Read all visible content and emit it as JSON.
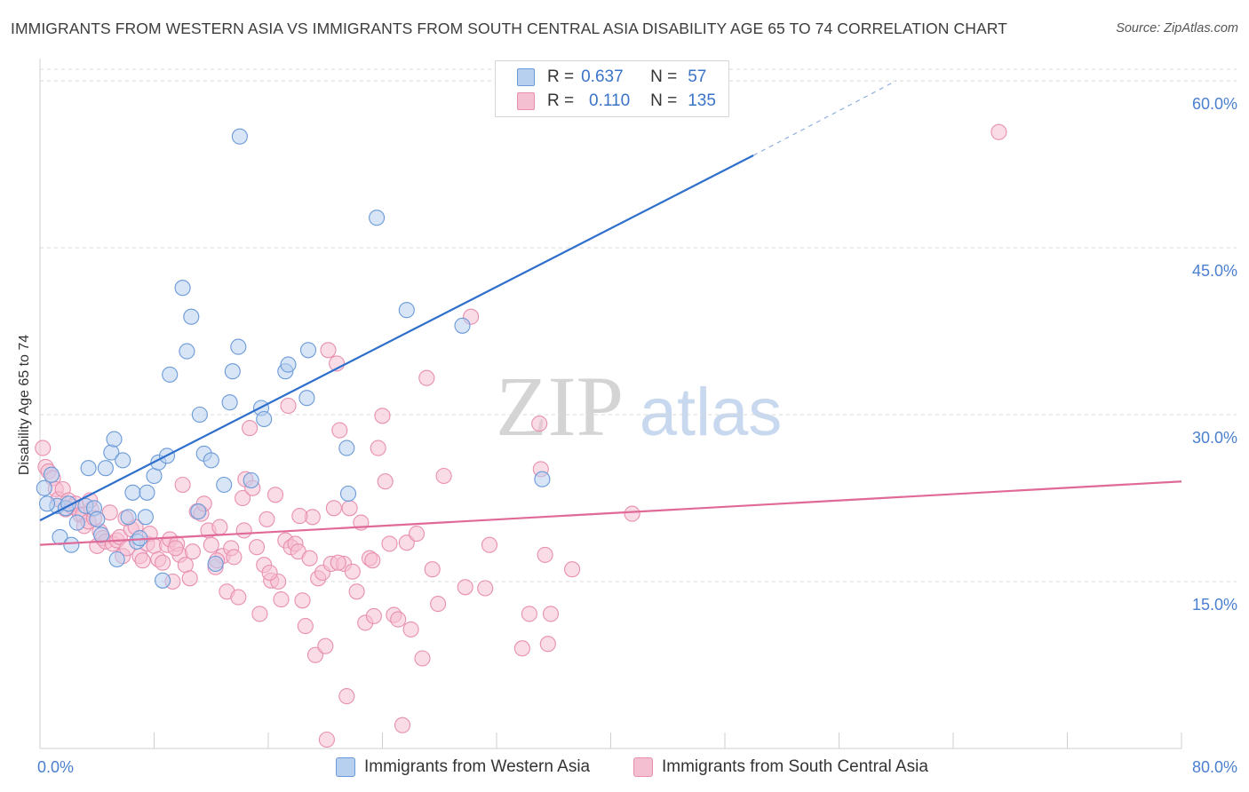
{
  "title": "IMMIGRANTS FROM WESTERN ASIA VS IMMIGRANTS FROM SOUTH CENTRAL ASIA DISABILITY AGE 65 TO 74 CORRELATION CHART",
  "source": "Source: ZipAtlas.com",
  "watermark": {
    "zip": "ZIP",
    "atlas": "atlas"
  },
  "legend": {
    "rows": [
      {
        "r_label": "R =",
        "r_value": "0.637",
        "n_label": "N =",
        "n_value": "57"
      },
      {
        "r_label": "R =",
        "r_value": "0.110",
        "n_label": "N =",
        "n_value": "135"
      }
    ]
  },
  "colors": {
    "series1_fill": "#b8d0f0",
    "series1_stroke": "#6a9ad8",
    "series1_line": "#2f6fcc",
    "series2_fill": "#f5bfd2",
    "series2_stroke": "#e88fb0",
    "series2_line": "#e06a97",
    "tick_label": "#4a7fd0",
    "grid": "#d9d9d9"
  },
  "chart_data": {
    "type": "scatter",
    "title": "IMMIGRANTS FROM WESTERN ASIA VS IMMIGRANTS FROM SOUTH CENTRAL ASIA DISABILITY AGE 65 TO 74 CORRELATION CHART",
    "xlabel": "",
    "ylabel": "Disability Age 65 to 74",
    "xlim": [
      0,
      80
    ],
    "ylim": [
      0,
      62
    ],
    "x_tick_labels": [
      "0.0%",
      "80.0%"
    ],
    "y_ticks": [
      15,
      30,
      45,
      60
    ],
    "y_tick_labels": [
      "15.0%",
      "30.0%",
      "45.0%",
      "60.0%"
    ],
    "grid": "horizontal dashed",
    "legend_position": "top-center",
    "series": [
      {
        "name": "Immigrants from Western Asia",
        "r": 0.637,
        "n": 57,
        "trend": {
          "x0": 0,
          "y0": 20.5,
          "x1": 50,
          "y1": 53.3,
          "dashed_to_x": 60,
          "dashed_to_y": 60
        },
        "points": [
          [
            0.3,
            23.4
          ],
          [
            0.8,
            24.6
          ],
          [
            1.2,
            21.8
          ],
          [
            1.8,
            21.6
          ],
          [
            2.0,
            22.0
          ],
          [
            1.4,
            19.0
          ],
          [
            2.2,
            18.3
          ],
          [
            2.6,
            20.3
          ],
          [
            3.2,
            21.8
          ],
          [
            3.8,
            21.6
          ],
          [
            4.0,
            20.6
          ],
          [
            3.4,
            25.2
          ],
          [
            4.6,
            25.2
          ],
          [
            5.0,
            26.6
          ],
          [
            5.2,
            27.8
          ],
          [
            4.3,
            19.2
          ],
          [
            5.4,
            17.0
          ],
          [
            5.8,
            25.9
          ],
          [
            6.2,
            20.8
          ],
          [
            6.5,
            23.0
          ],
          [
            6.8,
            18.6
          ],
          [
            7.0,
            18.9
          ],
          [
            7.5,
            23.0
          ],
          [
            7.4,
            20.8
          ],
          [
            8.0,
            24.5
          ],
          [
            8.3,
            25.7
          ],
          [
            8.6,
            15.1
          ],
          [
            8.9,
            26.3
          ],
          [
            9.1,
            33.6
          ],
          [
            10.0,
            41.4
          ],
          [
            10.3,
            35.7
          ],
          [
            10.6,
            38.8
          ],
          [
            11.1,
            21.3
          ],
          [
            11.2,
            30.0
          ],
          [
            11.5,
            26.5
          ],
          [
            12.0,
            25.9
          ],
          [
            12.3,
            16.6
          ],
          [
            12.9,
            23.7
          ],
          [
            13.3,
            31.1
          ],
          [
            13.5,
            33.9
          ],
          [
            13.9,
            36.1
          ],
          [
            14.0,
            55.0
          ],
          [
            14.8,
            24.1
          ],
          [
            15.5,
            30.6
          ],
          [
            15.7,
            29.6
          ],
          [
            17.2,
            33.9
          ],
          [
            17.4,
            34.5
          ],
          [
            18.7,
            31.5
          ],
          [
            18.8,
            35.8
          ],
          [
            21.5,
            27.0
          ],
          [
            21.6,
            22.9
          ],
          [
            23.6,
            47.7
          ],
          [
            25.7,
            39.4
          ],
          [
            29.6,
            38.0
          ],
          [
            35.2,
            24.2
          ],
          [
            42.3,
            59.7
          ],
          [
            0.5,
            22.0
          ]
        ]
      },
      {
        "name": "Immigrants from South Central Asia",
        "r": 0.11,
        "n": 135,
        "trend": {
          "x0": 0,
          "y0": 18.3,
          "x1": 80,
          "y1": 24.0
        },
        "points": [
          [
            0.2,
            27.0
          ],
          [
            0.4,
            25.3
          ],
          [
            0.6,
            24.9
          ],
          [
            0.9,
            24.3
          ],
          [
            1.1,
            23.3
          ],
          [
            1.3,
            22.4
          ],
          [
            1.6,
            23.3
          ],
          [
            1.8,
            21.5
          ],
          [
            2.0,
            22.3
          ],
          [
            2.3,
            21.7
          ],
          [
            2.5,
            22.0
          ],
          [
            2.8,
            21.0
          ],
          [
            3.0,
            21.0
          ],
          [
            3.1,
            20.0
          ],
          [
            3.4,
            20.4
          ],
          [
            3.6,
            21.5
          ],
          [
            3.8,
            20.7
          ],
          [
            4.0,
            18.2
          ],
          [
            4.2,
            19.5
          ],
          [
            4.4,
            18.9
          ],
          [
            4.6,
            18.6
          ],
          [
            4.9,
            21.2
          ],
          [
            5.1,
            18.4
          ],
          [
            5.4,
            18.7
          ],
          [
            5.6,
            19.0
          ],
          [
            5.8,
            17.3
          ],
          [
            6.1,
            18.0
          ],
          [
            6.4,
            19.7
          ],
          [
            6.7,
            19.9
          ],
          [
            7.0,
            17.3
          ],
          [
            7.2,
            16.9
          ],
          [
            7.5,
            18.4
          ],
          [
            7.7,
            19.3
          ],
          [
            8.0,
            18.2
          ],
          [
            8.3,
            17.0
          ],
          [
            8.6,
            16.7
          ],
          [
            8.9,
            18.3
          ],
          [
            9.1,
            18.8
          ],
          [
            9.3,
            15.0
          ],
          [
            9.6,
            18.4
          ],
          [
            9.8,
            17.4
          ],
          [
            10.0,
            23.7
          ],
          [
            10.2,
            16.5
          ],
          [
            10.5,
            15.3
          ],
          [
            10.7,
            17.7
          ],
          [
            11.0,
            21.3
          ],
          [
            11.3,
            21.1
          ],
          [
            11.5,
            22.0
          ],
          [
            11.8,
            19.6
          ],
          [
            12.0,
            18.3
          ],
          [
            12.3,
            16.3
          ],
          [
            12.6,
            19.9
          ],
          [
            12.8,
            17.3
          ],
          [
            13.1,
            14.1
          ],
          [
            13.4,
            18.0
          ],
          [
            13.6,
            17.2
          ],
          [
            13.9,
            13.6
          ],
          [
            14.2,
            22.5
          ],
          [
            14.4,
            24.2
          ],
          [
            14.7,
            28.8
          ],
          [
            14.9,
            23.4
          ],
          [
            15.2,
            18.1
          ],
          [
            15.4,
            12.1
          ],
          [
            15.7,
            16.5
          ],
          [
            15.9,
            20.6
          ],
          [
            16.2,
            15.1
          ],
          [
            16.5,
            22.8
          ],
          [
            16.7,
            15.0
          ],
          [
            16.9,
            13.4
          ],
          [
            17.2,
            18.7
          ],
          [
            17.4,
            30.8
          ],
          [
            17.6,
            18.1
          ],
          [
            17.9,
            18.4
          ],
          [
            18.1,
            17.7
          ],
          [
            18.4,
            13.3
          ],
          [
            18.6,
            11.0
          ],
          [
            18.9,
            17.1
          ],
          [
            19.1,
            20.8
          ],
          [
            19.3,
            8.4
          ],
          [
            19.5,
            15.3
          ],
          [
            19.8,
            15.8
          ],
          [
            20.0,
            9.2
          ],
          [
            20.2,
            35.8
          ],
          [
            20.4,
            16.6
          ],
          [
            20.6,
            21.6
          ],
          [
            20.8,
            34.6
          ],
          [
            21.0,
            28.6
          ],
          [
            21.3,
            16.6
          ],
          [
            21.5,
            4.7
          ],
          [
            21.7,
            21.6
          ],
          [
            21.9,
            15.9
          ],
          [
            22.2,
            14.1
          ],
          [
            22.5,
            20.3
          ],
          [
            22.8,
            11.3
          ],
          [
            23.1,
            17.1
          ],
          [
            23.4,
            11.9
          ],
          [
            23.7,
            27.0
          ],
          [
            24.0,
            29.9
          ],
          [
            24.2,
            24.0
          ],
          [
            24.5,
            18.4
          ],
          [
            24.8,
            12.0
          ],
          [
            25.1,
            11.6
          ],
          [
            25.4,
            2.1
          ],
          [
            25.7,
            18.5
          ],
          [
            26.0,
            10.7
          ],
          [
            26.4,
            19.3
          ],
          [
            26.8,
            8.1
          ],
          [
            27.1,
            33.3
          ],
          [
            27.5,
            16.1
          ],
          [
            27.9,
            13.0
          ],
          [
            28.3,
            24.5
          ],
          [
            29.8,
            14.5
          ],
          [
            30.2,
            38.8
          ],
          [
            31.2,
            14.4
          ],
          [
            31.5,
            18.3
          ],
          [
            33.8,
            9.0
          ],
          [
            34.3,
            12.1
          ],
          [
            35.0,
            29.2
          ],
          [
            35.1,
            25.1
          ],
          [
            35.4,
            17.4
          ],
          [
            35.6,
            9.4
          ],
          [
            35.8,
            12.1
          ],
          [
            37.3,
            16.1
          ],
          [
            41.5,
            21.1
          ],
          [
            67.2,
            55.4
          ],
          [
            20.1,
            0.8
          ],
          [
            3.5,
            22.3
          ],
          [
            6.0,
            20.7
          ],
          [
            9.5,
            18.0
          ],
          [
            12.4,
            16.9
          ],
          [
            14.3,
            19.6
          ],
          [
            16.1,
            15.8
          ],
          [
            18.2,
            20.9
          ],
          [
            20.9,
            16.7
          ],
          [
            23.3,
            16.9
          ]
        ]
      }
    ]
  },
  "bottom_legend": {
    "series1": "Immigrants from Western Asia",
    "series2": "Immigrants from South Central Asia"
  }
}
